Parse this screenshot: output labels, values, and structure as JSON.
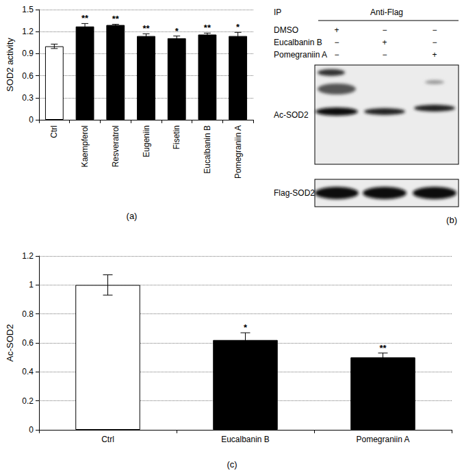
{
  "chart_data": [
    {
      "type": "bar",
      "panel": "(a)",
      "y_label": "SOD2 activity",
      "categories": [
        "Ctrl",
        "Kaempferol",
        "Resveratrol",
        "Eugeniin",
        "Fisetin",
        "Eucalbanin B",
        "Pomegraniin A"
      ],
      "values": [
        1.0,
        1.27,
        1.29,
        1.14,
        1.11,
        1.16,
        1.14
      ],
      "errors": [
        0.03,
        0.04,
        0.01,
        0.03,
        0.03,
        0.02,
        0.05
      ],
      "significance": [
        null,
        "**",
        "**",
        "**",
        "*",
        "**",
        "*"
      ],
      "colors": [
        "#ffffff",
        "#000000",
        "#000000",
        "#000000",
        "#000000",
        "#000000",
        "#000000"
      ],
      "ylim": [
        0,
        1.5
      ],
      "yticks": [
        0,
        0.3,
        0.6,
        0.9,
        1.2,
        1.5
      ],
      "grid": true
    },
    {
      "type": "bar",
      "panel": "(c)",
      "y_label": "Ac-SOD2",
      "categories": [
        "Ctrl",
        "Eucalbanin B",
        "Pomegraniin A"
      ],
      "values": [
        1.0,
        0.62,
        0.5
      ],
      "errors": [
        0.07,
        0.05,
        0.03
      ],
      "significance": [
        null,
        "*",
        "**"
      ],
      "colors": [
        "#ffffff",
        "#000000",
        "#000000"
      ],
      "ylim": [
        0,
        1.2
      ],
      "yticks": [
        0,
        0.2,
        0.4,
        0.6,
        0.8,
        1,
        1.2
      ],
      "grid": true
    }
  ],
  "blot": {
    "panel": "(b)",
    "ip_label": "IP",
    "antibody": "Anti-Flag",
    "treatments": [
      {
        "name": "DMSO",
        "marks": [
          "+",
          "−",
          "−"
        ]
      },
      {
        "name": "Eucalbanin B",
        "marks": [
          "−",
          "+",
          "−"
        ]
      },
      {
        "name": "Pomegraniin A",
        "marks": [
          "−",
          "−",
          "+"
        ]
      }
    ],
    "rows": [
      "Ac-SOD2",
      "Flag-SOD2"
    ]
  }
}
